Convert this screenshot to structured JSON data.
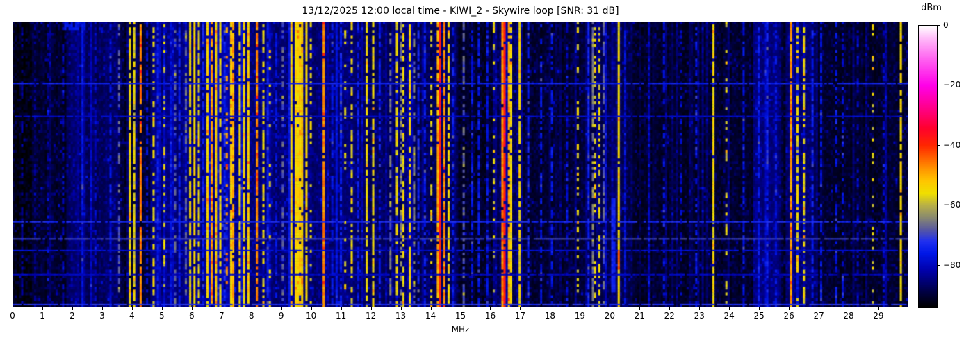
{
  "chart_data": {
    "type": "heatmap",
    "title": "13/12/2025 12:00 local time - KIWI_2 - Skywire loop [SNR: 31 dB]",
    "xlabel": "MHz",
    "x_range": [
      0,
      30
    ],
    "x_ticks": [
      0,
      1,
      2,
      3,
      4,
      5,
      6,
      7,
      8,
      9,
      10,
      11,
      12,
      13,
      14,
      15,
      16,
      17,
      18,
      19,
      20,
      21,
      22,
      23,
      24,
      25,
      26,
      27,
      28,
      29
    ],
    "colorbar": {
      "label": "dBm",
      "vmax": 0,
      "vmin": -94,
      "tick_values": [
        0,
        -20,
        -40,
        -60,
        -80
      ],
      "tick_labels": [
        "0",
        "−20",
        "−40",
        "−60",
        "−80"
      ]
    },
    "palette_stops": [
      [
        -94,
        "#000000"
      ],
      [
        -88,
        "#000050"
      ],
      [
        -82,
        "#0000a8"
      ],
      [
        -76,
        "#0018e8"
      ],
      [
        -72,
        "#2030f0"
      ],
      [
        -68,
        "#5a5aa0"
      ],
      [
        -64,
        "#8a8a70"
      ],
      [
        -60,
        "#b8b048"
      ],
      [
        -56,
        "#f0e000"
      ],
      [
        -52,
        "#ffc800"
      ],
      [
        -48,
        "#ff9800"
      ],
      [
        -44,
        "#ff6000"
      ],
      [
        -40,
        "#ff2800"
      ],
      [
        -34,
        "#ff0030"
      ],
      [
        -27,
        "#ff0090"
      ],
      [
        -20,
        "#ff00e8"
      ],
      [
        -12,
        "#ff58f0"
      ],
      [
        -5,
        "#ffb0f8"
      ],
      [
        0,
        "#ffffff"
      ]
    ],
    "grid": {
      "cols": 416,
      "rows": 100
    },
    "noise": {
      "base_level": -91,
      "cell_jitter": 7,
      "speckle_prob": 0.025
    },
    "haze_bands_format": [
      "f0_MHz",
      "f1_MHz",
      "boost_dB"
    ],
    "haze_bands": [
      [
        0,
        0.7,
        -2
      ],
      [
        1.8,
        3.6,
        4
      ],
      [
        4.6,
        7.7,
        6
      ],
      [
        7.7,
        11.3,
        5
      ],
      [
        11.3,
        13.5,
        4
      ],
      [
        13.5,
        14.9,
        3
      ],
      [
        16.3,
        17.1,
        3
      ],
      [
        19.2,
        20.7,
        3
      ],
      [
        24.8,
        25.7,
        6
      ],
      [
        25.9,
        27.0,
        4
      ]
    ],
    "stripes_format": [
      "freq_MHz",
      "width_MHz",
      "level_dBm",
      "solidity"
    ],
    "stripes": [
      [
        0.3,
        0.05,
        -83,
        0.5
      ],
      [
        0.75,
        0.05,
        -84,
        0.4
      ],
      [
        1.2,
        0.05,
        -83,
        0.4
      ],
      [
        1.7,
        0.05,
        -82,
        0.5
      ],
      [
        2.35,
        0.06,
        -77,
        0.9
      ],
      [
        2.8,
        0.05,
        -80,
        0.6
      ],
      [
        3.25,
        0.06,
        -78,
        0.7
      ],
      [
        3.55,
        0.05,
        -68,
        0.5
      ],
      [
        3.9,
        0.07,
        -56,
        0.95
      ],
      [
        4.08,
        0.05,
        -57,
        0.85
      ],
      [
        4.27,
        0.06,
        -46,
        0.9
      ],
      [
        4.5,
        0.05,
        -78,
        0.6
      ],
      [
        4.72,
        0.05,
        -57,
        0.55
      ],
      [
        4.88,
        0.05,
        -76,
        0.7
      ],
      [
        5.1,
        0.05,
        -58,
        0.35
      ],
      [
        5.3,
        0.05,
        -77,
        0.6
      ],
      [
        5.45,
        0.05,
        -68,
        0.5
      ],
      [
        5.62,
        0.05,
        -75,
        0.8
      ],
      [
        5.78,
        0.05,
        -67,
        0.6
      ],
      [
        5.95,
        0.09,
        -56,
        0.9
      ],
      [
        6.1,
        0.09,
        -54,
        0.92
      ],
      [
        6.25,
        0.06,
        -58,
        0.7
      ],
      [
        6.4,
        0.05,
        -75,
        0.8
      ],
      [
        6.55,
        0.08,
        -54,
        0.92
      ],
      [
        6.68,
        0.09,
        -48,
        0.9
      ],
      [
        6.82,
        0.09,
        -53,
        0.95
      ],
      [
        6.96,
        0.06,
        -57,
        0.8
      ],
      [
        7.12,
        0.05,
        -74,
        0.7
      ],
      [
        7.2,
        0.05,
        -48,
        0.28
      ],
      [
        7.3,
        0.09,
        -54,
        0.9
      ],
      [
        7.42,
        0.06,
        -50,
        0.85
      ],
      [
        7.6,
        0.05,
        -56,
        0.8
      ],
      [
        7.78,
        0.07,
        -55,
        0.9
      ],
      [
        7.92,
        0.06,
        -53,
        0.9
      ],
      [
        8.2,
        0.06,
        -47,
        0.85
      ],
      [
        8.4,
        0.05,
        -57,
        0.6
      ],
      [
        8.55,
        0.05,
        -75,
        0.85
      ],
      [
        8.62,
        0.04,
        -57,
        0.18
      ],
      [
        8.82,
        0.05,
        -78,
        0.6
      ],
      [
        9.05,
        0.05,
        -68,
        0.5
      ],
      [
        9.35,
        0.1,
        -55,
        0.95
      ],
      [
        9.5,
        0.12,
        -54,
        0.97
      ],
      [
        9.65,
        0.1,
        -53,
        0.95
      ],
      [
        9.82,
        0.09,
        -55,
        0.9
      ],
      [
        10.02,
        0.05,
        -57,
        0.4
      ],
      [
        10.42,
        0.05,
        -47,
        0.95
      ],
      [
        10.7,
        0.05,
        -77,
        0.7
      ],
      [
        11.0,
        0.05,
        -75,
        0.8
      ],
      [
        11.12,
        0.04,
        -57,
        0.2
      ],
      [
        11.35,
        0.05,
        -57,
        0.6
      ],
      [
        11.6,
        0.05,
        -76,
        0.7
      ],
      [
        11.85,
        0.06,
        -56,
        0.8
      ],
      [
        12.05,
        0.06,
        -56,
        0.75
      ],
      [
        12.3,
        0.05,
        -76,
        0.6
      ],
      [
        12.65,
        0.05,
        -67,
        0.6
      ],
      [
        12.85,
        0.07,
        -56,
        0.7
      ],
      [
        13.0,
        0.05,
        -66,
        0.7
      ],
      [
        13.12,
        0.05,
        -56,
        0.55
      ],
      [
        13.27,
        0.07,
        -55,
        0.75
      ],
      [
        13.42,
        0.05,
        -66,
        0.5
      ],
      [
        13.62,
        0.05,
        -75,
        0.7
      ],
      [
        13.82,
        0.05,
        -76,
        0.7
      ],
      [
        14.05,
        0.05,
        -57,
        0.35
      ],
      [
        14.22,
        0.06,
        -50,
        0.9
      ],
      [
        14.32,
        0.1,
        -38,
        0.97
      ],
      [
        14.44,
        0.06,
        -47,
        0.9
      ],
      [
        14.57,
        0.05,
        -56,
        0.8
      ],
      [
        14.78,
        0.05,
        -76,
        0.6
      ],
      [
        15.12,
        0.05,
        -68,
        0.5
      ],
      [
        15.38,
        0.05,
        -77,
        0.6
      ],
      [
        15.62,
        0.05,
        -76,
        0.7
      ],
      [
        15.88,
        0.05,
        -77,
        0.6
      ],
      [
        16.12,
        0.05,
        -58,
        0.25
      ],
      [
        16.38,
        0.07,
        -47,
        0.9
      ],
      [
        16.48,
        0.09,
        -38,
        0.95
      ],
      [
        16.6,
        0.06,
        -50,
        0.85
      ],
      [
        16.72,
        0.05,
        -55,
        0.9
      ],
      [
        16.97,
        0.05,
        -56,
        0.85
      ],
      [
        17.25,
        0.05,
        -76,
        0.7
      ],
      [
        17.7,
        0.05,
        -77,
        0.5
      ],
      [
        18.1,
        0.05,
        -76,
        0.6
      ],
      [
        18.55,
        0.04,
        -80,
        0.5
      ],
      [
        18.92,
        0.05,
        -57,
        0.3
      ],
      [
        19.3,
        0.05,
        -74,
        0.85
      ],
      [
        19.42,
        0.05,
        -66,
        0.8
      ],
      [
        19.52,
        0.04,
        -56,
        0.45
      ],
      [
        19.65,
        0.04,
        -57,
        0.5
      ],
      [
        19.78,
        0.04,
        -68,
        0.5
      ],
      [
        20.3,
        0.05,
        -55,
        0.97
      ],
      [
        20.55,
        0.05,
        -77,
        0.7
      ],
      [
        21.3,
        0.05,
        -80,
        0.5
      ],
      [
        21.8,
        0.05,
        -78,
        0.5
      ],
      [
        22.4,
        0.04,
        -80,
        0.4
      ],
      [
        22.9,
        0.05,
        -77,
        0.6
      ],
      [
        23.45,
        0.05,
        -55,
        0.95
      ],
      [
        23.92,
        0.05,
        -58,
        0.25
      ],
      [
        24.5,
        0.05,
        -77,
        0.7
      ],
      [
        25.0,
        0.07,
        -76,
        0.8
      ],
      [
        25.3,
        0.07,
        -75,
        0.8
      ],
      [
        25.55,
        0.06,
        -77,
        0.7
      ],
      [
        26.1,
        0.08,
        -48,
        0.9
      ],
      [
        26.28,
        0.05,
        -56,
        0.6
      ],
      [
        26.5,
        0.06,
        -56,
        0.65
      ],
      [
        26.78,
        0.05,
        -75,
        0.7
      ],
      [
        27.1,
        0.05,
        -77,
        0.6
      ],
      [
        27.55,
        0.05,
        -77,
        0.5
      ],
      [
        27.82,
        0.05,
        -78,
        0.5
      ],
      [
        28.3,
        0.04,
        -80,
        0.4
      ],
      [
        28.8,
        0.05,
        -57,
        0.3
      ],
      [
        29.2,
        0.04,
        -79,
        0.4
      ],
      [
        29.78,
        0.07,
        -55,
        0.85
      ]
    ],
    "h_streaks_format": [
      "y_fraction",
      "level_dBm"
    ],
    "h_streaks": [
      [
        0.215,
        -74
      ],
      [
        0.33,
        -79
      ],
      [
        0.7,
        -73
      ],
      [
        0.76,
        -70
      ],
      [
        0.8,
        -78
      ],
      [
        0.885,
        -80
      ],
      [
        0.99,
        -72
      ]
    ],
    "blobs_format": [
      "freq_MHz",
      "width_MHz",
      "y0_frac",
      "y1_frac",
      "level_dBm",
      "solidity"
    ],
    "blobs": [
      [
        20.1,
        0.12,
        0.62,
        0.95,
        -74,
        0.9
      ],
      [
        20.28,
        0.06,
        0.8,
        0.87,
        -44,
        0.9
      ],
      [
        2.1,
        0.7,
        0.005,
        0.03,
        -76,
        0.7
      ]
    ]
  }
}
